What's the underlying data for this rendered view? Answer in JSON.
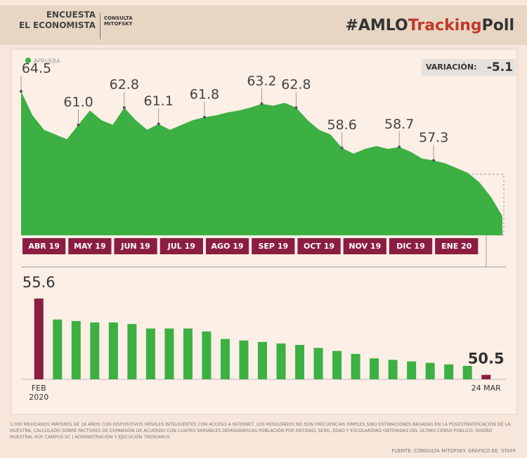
{
  "header": {
    "line1": "ENCUESTA",
    "line2": "EL ECONOMISTA",
    "logo": "CONSULTA MITOFSKY",
    "hashtag": [
      "#AMLO",
      "Tracking",
      "Poll"
    ]
  },
  "chart_data": [
    {
      "type": "area",
      "variation_label": "VARIACIÓN:",
      "variation_value": "-5.1",
      "categories": [
        "ABR 19",
        null,
        null,
        null,
        "MAY 19",
        null,
        null,
        null,
        "JUN 19",
        null,
        null,
        null,
        "JUL 19",
        null,
        null,
        null,
        "AGO 19",
        null,
        null,
        null,
        "SEP 19",
        null,
        null,
        null,
        "OCT 19",
        null,
        null,
        null,
        "NOV 19",
        null,
        null,
        null,
        "DIC 19",
        null,
        null,
        null,
        "ENE 20",
        null,
        null,
        null,
        null,
        null,
        null
      ],
      "series": [
        {
          "name": "APRUEBA",
          "color": "#3cb043",
          "values": [
            64.5,
            62,
            60.5,
            60,
            59.5,
            61,
            62.5,
            61.5,
            61,
            62.8,
            61.5,
            60.5,
            61.1,
            60.5,
            61,
            61.5,
            61.8,
            62,
            62.3,
            62.5,
            62.8,
            63.2,
            63,
            63.3,
            62.8,
            61.5,
            60.5,
            60,
            58.6,
            58,
            58.5,
            58.8,
            58.5,
            58.7,
            58.2,
            57.5,
            57.3,
            57,
            56.5,
            56,
            55,
            53.5,
            51.5
          ],
          "value_labels": [
            "64.5",
            null,
            null,
            null,
            null,
            "61.0",
            null,
            null,
            null,
            "62.8",
            null,
            null,
            "61.1",
            null,
            null,
            null,
            "61.8",
            null,
            null,
            null,
            null,
            "63.2",
            null,
            null,
            "62.8",
            null,
            null,
            null,
            "58.6",
            null,
            null,
            null,
            null,
            "58.7",
            null,
            null,
            "57.3",
            null,
            null,
            null,
            null,
            null,
            null
          ]
        }
      ],
      "ylim": [
        49.5,
        66
      ]
    },
    {
      "type": "bar",
      "categories": [
        "FEB 2020",
        null,
        null,
        null,
        null,
        null,
        null,
        null,
        null,
        null,
        null,
        null,
        null,
        null,
        null,
        null,
        null,
        null,
        null,
        null,
        null,
        null,
        null,
        null,
        "24 MAR"
      ],
      "values": [
        55.6,
        54.2,
        54.1,
        54.0,
        54.0,
        53.9,
        53.6,
        53.6,
        53.6,
        53.4,
        52.9,
        52.8,
        52.7,
        52.6,
        52.5,
        52.3,
        52.1,
        51.9,
        51.6,
        51.5,
        51.4,
        51.3,
        51.2,
        51.1,
        50.5
      ],
      "value_labels": [
        "55.6",
        null,
        null,
        null,
        null,
        null,
        null,
        null,
        null,
        null,
        null,
        null,
        null,
        null,
        null,
        null,
        null,
        null,
        null,
        null,
        null,
        null,
        null,
        null,
        "50.5"
      ],
      "colors": [
        "#8b1d42",
        "#3cb043",
        "#3cb043",
        "#3cb043",
        "#3cb043",
        "#3cb043",
        "#3cb043",
        "#3cb043",
        "#3cb043",
        "#3cb043",
        "#3cb043",
        "#3cb043",
        "#3cb043",
        "#3cb043",
        "#3cb043",
        "#3cb043",
        "#3cb043",
        "#3cb043",
        "#3cb043",
        "#3cb043",
        "#3cb043",
        "#3cb043",
        "#3cb043",
        "#3cb043",
        "#8b1d42"
      ],
      "ylim": [
        50.2,
        56
      ]
    }
  ],
  "footer": {
    "note": "1,000 MEXICANOS MAYORES DE 18 AÑOS CON DISPOSITIVOS MÓVILES INTELIGENTES CON ACCESO A INTERNET. LOS RESULTADOS NO SON FRECUENCIAS SIMPLES SINO ESTIMACIONES BASADAS EN LA POSESTRATIFICACIÓN DE LA MUESTRA, CALCULADO SOBRE FACTORES DE EXPANSIÓN DE ACUERDO CON CUATRO VARIABLES DEMOGRÁFICAS POBLACIÓN POR ENTIDAD, SEXO, EDAD Y ESCOLARIDAD OBTENIDAS DEL ÚLTIMO CENSO PÚBLICO. DISEÑO MUESTRAL ROY CAMPOS SC | ADMINISTRACIÓN Y EJECUCIÓN TRESEARCH",
    "source": "FUENTE: CONSULTA MITOFSKY. GRÁFICO EE: STAFF"
  }
}
